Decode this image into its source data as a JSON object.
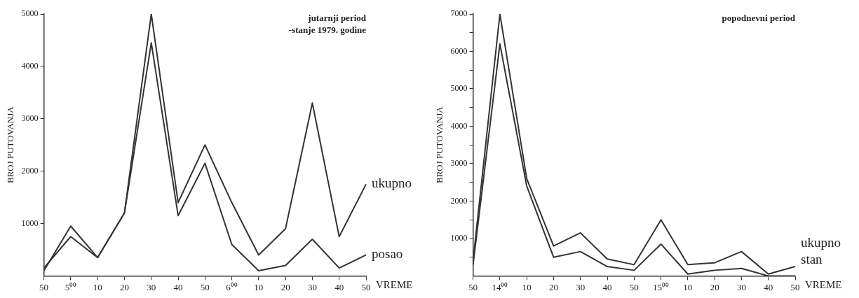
{
  "chart_data": [
    {
      "type": "line",
      "title": "jutarnji period",
      "subtitle": "-stanje 1979. godine",
      "xlabel": "VREME",
      "ylabel": "BROJ PUTOVANJA",
      "categories": [
        "50",
        "5⁰⁰",
        "10",
        "20",
        "30",
        "40",
        "50",
        "6⁰⁰",
        "10",
        "20",
        "30",
        "40",
        "50"
      ],
      "series": [
        {
          "name": "ukupno",
          "color": "#333333",
          "values": [
            100,
            950,
            350,
            1200,
            5000,
            1400,
            2500,
            1400,
            400,
            900,
            3300,
            750,
            1750
          ]
        },
        {
          "name": "posao",
          "color": "#333333",
          "values": [
            150,
            750,
            350,
            1200,
            4450,
            1150,
            2150,
            600,
            100,
            200,
            700,
            150,
            400
          ]
        }
      ],
      "ylim": [
        0,
        5000
      ],
      "yticks": [
        1000,
        2000,
        3000,
        4000,
        5000
      ],
      "grid": false
    },
    {
      "type": "line",
      "title": "popodnevni period",
      "xlabel": "VREME",
      "ylabel": "BROJ PUTOVANJA",
      "categories": [
        "50",
        "14⁰⁰",
        "10",
        "20",
        "30",
        "40",
        "50",
        "15⁰⁰",
        "10",
        "20",
        "30",
        "40",
        "50"
      ],
      "series": [
        {
          "name": "ukupno",
          "color": "#333333",
          "values": [
            400,
            7000,
            2600,
            800,
            1150,
            450,
            300,
            1500,
            300,
            350,
            650,
            50,
            250
          ]
        },
        {
          "name": "stan",
          "color": "#333333",
          "values": [
            300,
            6200,
            2400,
            500,
            650,
            250,
            150,
            850,
            50,
            150,
            200,
            0,
            0
          ]
        }
      ],
      "ylim": [
        0,
        7000
      ],
      "yticks": [
        {
          "value": 500,
          "label": null
        },
        1000,
        {
          "value": 1500,
          "label": null
        },
        2000,
        {
          "value": 2500,
          "label": null
        },
        3000,
        {
          "value": 3500,
          "label": null
        },
        4000,
        {
          "value": 4500,
          "label": null
        },
        5000,
        {
          "value": 5500,
          "label": null
        },
        6000,
        {
          "value": 6500,
          "label": null
        },
        7000
      ],
      "grid": false
    }
  ]
}
